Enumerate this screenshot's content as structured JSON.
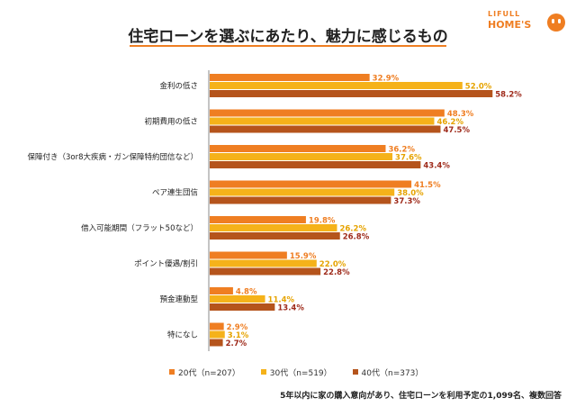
{
  "brand": {
    "top": "LIFULL",
    "main": "HOME'S",
    "color": "#ef7e22"
  },
  "title": "住宅ローンを選ぶにあたり、魅力に感じるもの",
  "footnote": "5年以内に家の購入意向があり、住宅ローンを利用予定の1,099名、複数回答",
  "chart_data": {
    "type": "bar",
    "orientation": "horizontal",
    "categories": [
      "金利の低さ",
      "初期費用の低さ",
      "保障付き（3or8大疾病・ガン保障特約団信など）",
      "ペア連生団信",
      "借入可能期間（フラット50など）",
      "ポイント優遇/割引",
      "預金連動型",
      "特になし"
    ],
    "series": [
      {
        "name": "20代（n=207）",
        "color": "#ef7e22",
        "label_color": "#ef7e22",
        "values": [
          32.9,
          48.3,
          36.2,
          41.5,
          19.8,
          15.9,
          4.8,
          2.9
        ]
      },
      {
        "name": "30代（n=519）",
        "color": "#f5b21a",
        "label_color": "#e6a300",
        "values": [
          52.0,
          46.2,
          37.6,
          38.0,
          26.2,
          22.0,
          11.4,
          3.1
        ]
      },
      {
        "name": "40代（n=373）",
        "color": "#b5541c",
        "label_color": "#9e2a1a",
        "values": [
          58.2,
          47.5,
          43.4,
          37.3,
          26.8,
          22.8,
          13.4,
          2.7
        ]
      }
    ],
    "value_suffix": "%",
    "xlim": [
      0,
      60
    ],
    "grid": false,
    "legend_position": "bottom"
  }
}
